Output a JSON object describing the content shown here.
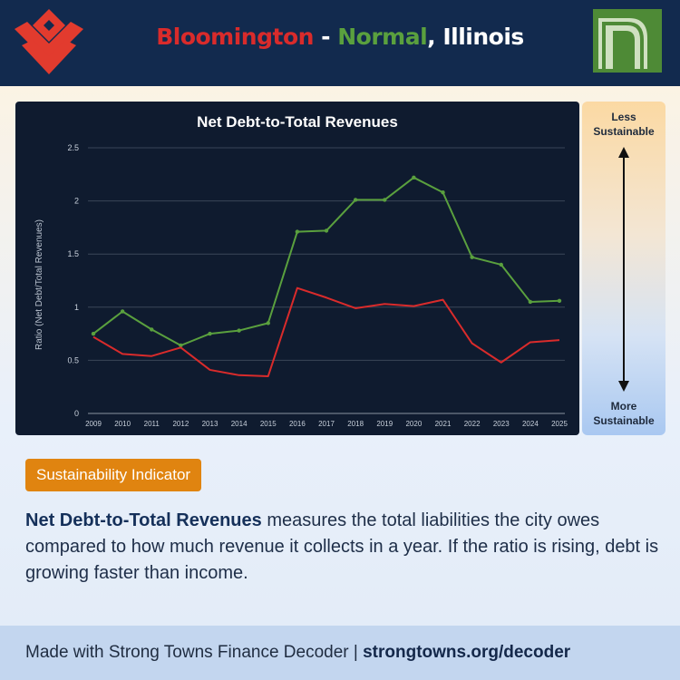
{
  "header": {
    "title_city1": "Bloomington",
    "title_sep": " - ",
    "title_city2": "Normal",
    "title_state": ", Illinois"
  },
  "colors": {
    "bloomington": "#d92b2b",
    "normal": "#5aa03e",
    "header_bg": "#122a4e",
    "badge_bg": "#e08410"
  },
  "indicator": {
    "top": "Less Sustainable",
    "bottom": "More Sustainable"
  },
  "badge": "Sustainability Indicator",
  "description": {
    "bold": "Net Debt-to-Total Revenues",
    "rest": " measures the total liabilities the city owes compared to how much revenue it collects in a year. If the ratio is rising, debt is growing faster than income."
  },
  "footer": {
    "prefix": "Made with Strong Towns Finance Decoder | ",
    "link": "strongtowns.org/decoder"
  },
  "chart_data": {
    "type": "line",
    "title": "Net Debt-to-Total Revenues",
    "ylabel": "Ratio (Net Debt/Total Revenues)",
    "xlabel": "",
    "ylim": [
      0,
      2.5
    ],
    "yticks": [
      "0",
      "0.5",
      "1",
      "1.5",
      "2",
      "2.5"
    ],
    "ytick_values": [
      0,
      0.5,
      1,
      1.5,
      2,
      2.5
    ],
    "grid": true,
    "categories": [
      "2009",
      "2010",
      "2011",
      "2012",
      "2013",
      "2014",
      "2015",
      "2016",
      "2017",
      "2018",
      "2019",
      "2020",
      "2021",
      "2022",
      "2023",
      "2024",
      "2025"
    ],
    "series": [
      {
        "key": "normal",
        "color": "#5aa03e",
        "markers": true,
        "values": [
          0.75,
          0.96,
          0.79,
          0.64,
          0.75,
          0.78,
          0.85,
          1.71,
          1.72,
          2.01,
          2.01,
          2.22,
          2.08,
          1.47,
          1.4,
          1.05,
          1.06
        ]
      },
      {
        "key": "bloomington",
        "color": "#d92b2b",
        "markers": false,
        "values": [
          0.72,
          0.56,
          0.54,
          0.62,
          0.41,
          0.36,
          0.35,
          1.18,
          1.09,
          0.99,
          1.03,
          1.01,
          1.07,
          0.66,
          0.48,
          0.67,
          0.69
        ]
      }
    ]
  }
}
